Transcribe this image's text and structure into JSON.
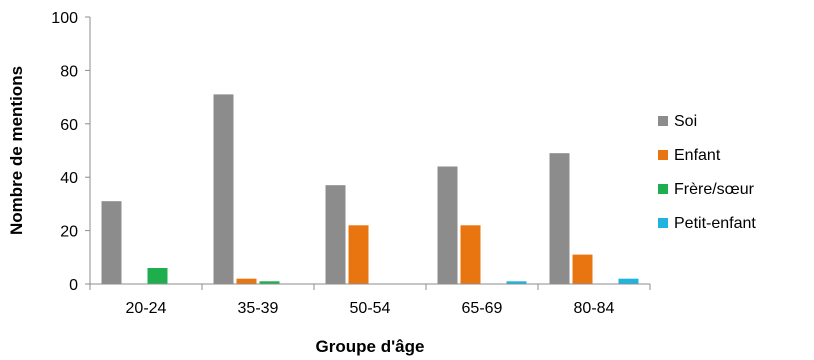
{
  "chart_data": {
    "type": "bar",
    "title": "",
    "xlabel": "Groupe d'âge",
    "ylabel": "Nombre de mentions",
    "ylim": [
      0,
      100
    ],
    "yticks": [
      0,
      20,
      40,
      60,
      80,
      100
    ],
    "categories": [
      "20-24",
      "35-39",
      "50-54",
      "65-69",
      "80-84"
    ],
    "series": [
      {
        "name": "Soi",
        "color": "#8c8c8c",
        "values": [
          31,
          71,
          37,
          44,
          49
        ]
      },
      {
        "name": "Enfant",
        "color": "#e8750f",
        "values": [
          0,
          2,
          22,
          22,
          11
        ]
      },
      {
        "name": "Frère/sœur",
        "color": "#1fae4e",
        "values": [
          6,
          1,
          0,
          0,
          0
        ]
      },
      {
        "name": "Petit-enfant",
        "color": "#1fb3e0",
        "values": [
          0,
          0,
          0,
          1,
          2
        ]
      }
    ],
    "grid": false,
    "legend": "right"
  }
}
